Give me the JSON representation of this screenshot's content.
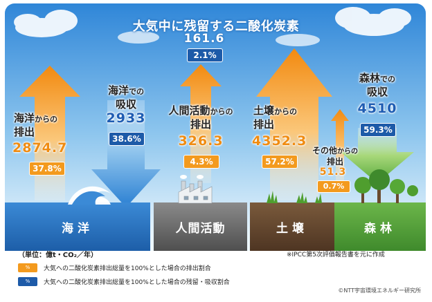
{
  "title": "大気中に残留する二酸化炭素",
  "atmosphere": {
    "value": "161.6",
    "pct": "2.1%"
  },
  "flows": {
    "ocean_emit": {
      "label1": "海洋",
      "label1_small": "からの",
      "label2": "排出",
      "value": "2874.7",
      "pct": "37.8%"
    },
    "ocean_absorb": {
      "label1": "海洋",
      "label1_small": "での",
      "label2": "吸収",
      "value": "2933",
      "pct": "38.6%"
    },
    "human_emit": {
      "label1": "人間活動",
      "label1_small": "からの",
      "label2": "排出",
      "value": "326.3",
      "pct": "4.3%"
    },
    "soil_emit": {
      "label1": "土壌",
      "label1_small": "からの",
      "label2": "排出",
      "value": "4352.3",
      "pct": "57.2%"
    },
    "other_emit": {
      "label1": "その他",
      "label1_small": "からの",
      "label2": "排出",
      "value": "51.3",
      "pct": "0.7%"
    },
    "forest_absorb": {
      "label1": "森林",
      "label1_small": "での",
      "label2": "吸収",
      "value": "4510",
      "pct": "59.3%"
    }
  },
  "ground": {
    "ocean": "海洋",
    "human": "人間活動",
    "soil": "土壌",
    "forest": "森林"
  },
  "unit": "（単位：億t・CO₂／年）",
  "legend": [
    {
      "swatch": "%",
      "color": "#f39a1e",
      "text": "大気への二酸化炭素排出総量を100%とした場合の排出割合"
    },
    {
      "swatch": "%",
      "color": "#1d5aa8",
      "text": "大気への二酸化炭素排出総量を100%とした場合の残留・吸収割合"
    }
  ],
  "note": "※IPCC第5次評価報告書を元に作成",
  "copyright": "©NTT宇宙環境エネルギー研究所"
}
